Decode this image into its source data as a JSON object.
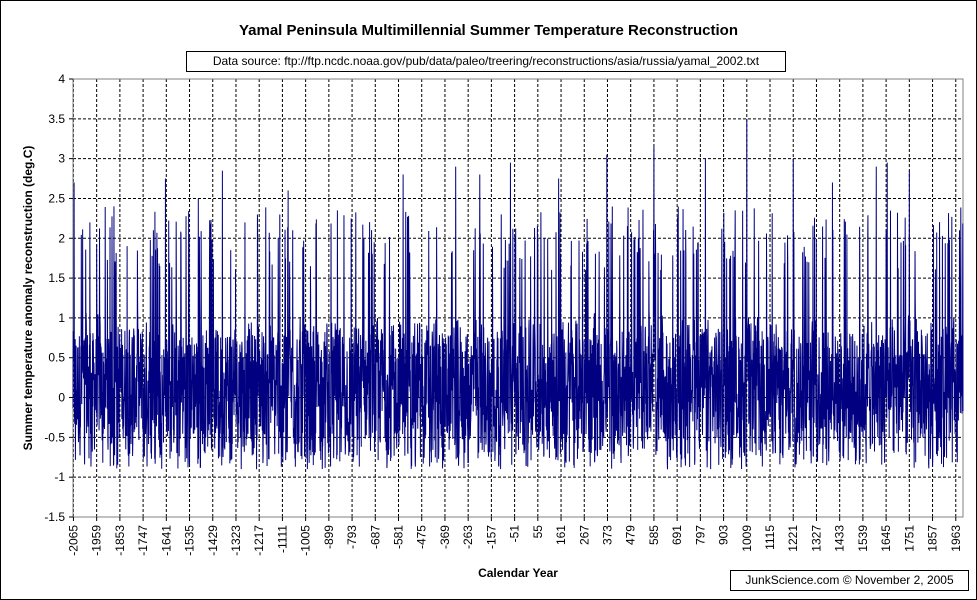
{
  "chart_data": {
    "type": "line",
    "title": "Yamal Peninsula Multimillennial Summer Temperature Reconstruction",
    "subtitle": "Data source: ftp://ftp.ncdc.noaa.gov/pub/data/paleo/treering/reconstructions/asia/russia/yamal_2002.txt",
    "credit": "JunkScience.com ©  November 2, 2005",
    "xlabel": "Calendar Year",
    "ylabel": "Summer temperature anomaly reconstruction (deg.C)",
    "xlim": [
      -2067,
      1996
    ],
    "ylim": [
      -1.5,
      4
    ],
    "grid": true,
    "legend": "none",
    "line_color": "#000080",
    "y_ticks": [
      "4",
      "3.5",
      "3",
      "2.5",
      "2",
      "1.5",
      "1",
      "0.5",
      "0",
      "-0.5",
      "-1",
      "-1.5"
    ],
    "x_ticks": [
      "-2065",
      "-1959",
      "-1853",
      "-1747",
      "-1641",
      "-1535",
      "-1429",
      "-1323",
      "-1217",
      "-1111",
      "-1005",
      "-899",
      "-793",
      "-687",
      "-581",
      "-475",
      "-369",
      "-263",
      "-157",
      "-51",
      "55",
      "161",
      "267",
      "373",
      "479",
      "585",
      "691",
      "797",
      "903",
      "1009",
      "1115",
      "1221",
      "1327",
      "1433",
      "1539",
      "1645",
      "1751",
      "1857",
      "1963"
    ],
    "series": [
      {
        "x_start": -2067,
        "x_end": 1996,
        "x_step": 1,
        "note_values": "Annual values fluctuate roughly between -1.0 and 3.5 around a mean of about 0.2",
        "peaks": [
          {
            "x": -2062,
            "y": 2.7
          },
          {
            "x": -1990,
            "y": 2.2
          },
          {
            "x": -1880,
            "y": 2.4
          },
          {
            "x": -1700,
            "y": 2.1
          },
          {
            "x": -1645,
            "y": 2.75
          },
          {
            "x": -1495,
            "y": 2.5
          },
          {
            "x": -1385,
            "y": 2.85
          },
          {
            "x": -1085,
            "y": 2.6
          },
          {
            "x": -860,
            "y": 2.35
          },
          {
            "x": -560,
            "y": 2.8
          },
          {
            "x": -320,
            "y": 2.9
          },
          {
            "x": -210,
            "y": 2.8
          },
          {
            "x": -70,
            "y": 2.95
          },
          {
            "x": 150,
            "y": 2.75
          },
          {
            "x": 370,
            "y": 3.05
          },
          {
            "x": 585,
            "y": 3.15
          },
          {
            "x": 820,
            "y": 3.0
          },
          {
            "x": 1009,
            "y": 3.5
          },
          {
            "x": 1221,
            "y": 3.0
          },
          {
            "x": 1400,
            "y": 2.7
          },
          {
            "x": 1600,
            "y": 2.9
          },
          {
            "x": 1650,
            "y": 2.95
          },
          {
            "x": 1751,
            "y": 2.85
          },
          {
            "x": 1980,
            "y": 2.1
          }
        ]
      }
    ]
  }
}
